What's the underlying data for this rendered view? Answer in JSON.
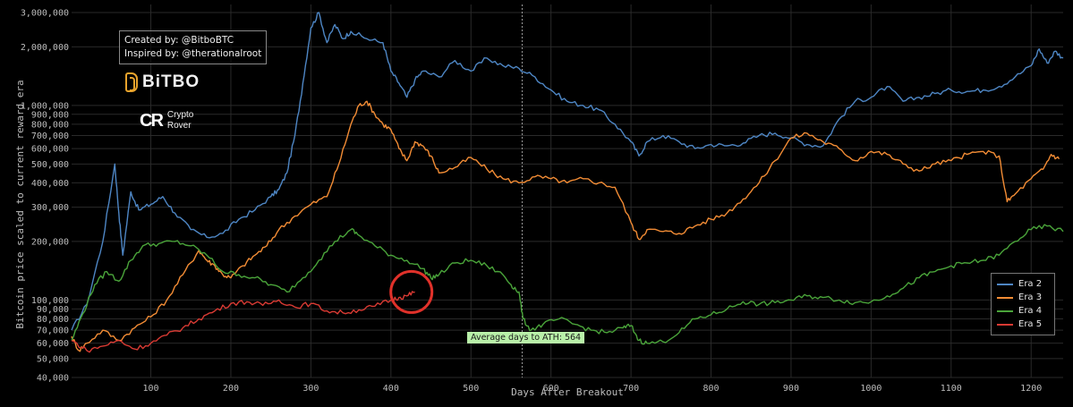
{
  "credits": {
    "created_by": "Created by: @BitboBTC",
    "inspired_by": "Inspired by: @therationalroot"
  },
  "logos": {
    "bitbo": "BiTBO",
    "crypto_rover_mark": "CR",
    "crypto_rover_line1": "Crypto",
    "crypto_rover_line2": "Rover"
  },
  "colors": {
    "background": "#000000",
    "grid": "#2a2a2a",
    "era2": "#4e86c4",
    "era3": "#f28c35",
    "era4": "#4aa43a",
    "era5": "#d83a33",
    "highlight_circle": "#e0312a",
    "ath_label_bg": "#b9f0a9"
  },
  "chart_data": {
    "type": "line",
    "xlabel": "Days After Breakout",
    "ylabel": "Bitcoin price scaled to current reward era",
    "yscale": "log",
    "xlim": [
      1,
      1240
    ],
    "ylim": [
      40000,
      3300000
    ],
    "x_ticks": [
      100,
      200,
      300,
      400,
      500,
      600,
      700,
      800,
      900,
      1000,
      1100,
      1200
    ],
    "y_ticks": [
      {
        "value": 40000,
        "label": "40,000"
      },
      {
        "value": 50000,
        "label": "50,000"
      },
      {
        "value": 60000,
        "label": "60,000"
      },
      {
        "value": 70000,
        "label": "70,000"
      },
      {
        "value": 80000,
        "label": "80,000"
      },
      {
        "value": 90000,
        "label": "90,000"
      },
      {
        "value": 100000,
        "label": "100,000"
      },
      {
        "value": 200000,
        "label": "200,000"
      },
      {
        "value": 300000,
        "label": "300,000"
      },
      {
        "value": 400000,
        "label": "400,000"
      },
      {
        "value": 500000,
        "label": "500,000"
      },
      {
        "value": 600000,
        "label": "600,000"
      },
      {
        "value": 700000,
        "label": "700,000"
      },
      {
        "value": 800000,
        "label": "800,000"
      },
      {
        "value": 900000,
        "label": "900,000"
      },
      {
        "value": 1000000,
        "label": "1,000,000"
      },
      {
        "value": 2000000,
        "label": "2,000,000"
      },
      {
        "value": 3000000,
        "label": "3,000,000"
      }
    ],
    "grid": true,
    "legend_position": "bottom-right",
    "annotation": {
      "x": 564,
      "label": "Average days to ATH: 564"
    },
    "highlight": {
      "x": 420,
      "y": 110000
    },
    "series": [
      {
        "name": "Era 2",
        "color": "#4e86c4",
        "points": [
          [
            1,
            70000
          ],
          [
            20,
            95000
          ],
          [
            40,
            200000
          ],
          [
            55,
            500000
          ],
          [
            60,
            280000
          ],
          [
            65,
            170000
          ],
          [
            75,
            360000
          ],
          [
            85,
            290000
          ],
          [
            100,
            310000
          ],
          [
            115,
            340000
          ],
          [
            130,
            280000
          ],
          [
            150,
            230000
          ],
          [
            170,
            210000
          ],
          [
            190,
            220000
          ],
          [
            210,
            260000
          ],
          [
            230,
            290000
          ],
          [
            250,
            340000
          ],
          [
            260,
            370000
          ],
          [
            270,
            450000
          ],
          [
            280,
            700000
          ],
          [
            290,
            1300000
          ],
          [
            300,
            2500000
          ],
          [
            310,
            3000000
          ],
          [
            320,
            2100000
          ],
          [
            330,
            2600000
          ],
          [
            340,
            2200000
          ],
          [
            350,
            2400000
          ],
          [
            370,
            2200000
          ],
          [
            390,
            2100000
          ],
          [
            400,
            1500000
          ],
          [
            410,
            1300000
          ],
          [
            420,
            1100000
          ],
          [
            430,
            1350000
          ],
          [
            440,
            1500000
          ],
          [
            460,
            1400000
          ],
          [
            480,
            1700000
          ],
          [
            500,
            1500000
          ],
          [
            520,
            1750000
          ],
          [
            540,
            1600000
          ],
          [
            560,
            1550000
          ],
          [
            580,
            1400000
          ],
          [
            600,
            1200000
          ],
          [
            620,
            1050000
          ],
          [
            640,
            1000000
          ],
          [
            660,
            950000
          ],
          [
            680,
            800000
          ],
          [
            700,
            650000
          ],
          [
            710,
            550000
          ],
          [
            720,
            650000
          ],
          [
            740,
            700000
          ],
          [
            760,
            650000
          ],
          [
            780,
            600000
          ],
          [
            800,
            630000
          ],
          [
            820,
            620000
          ],
          [
            840,
            640000
          ],
          [
            860,
            700000
          ],
          [
            880,
            720000
          ],
          [
            900,
            680000
          ],
          [
            920,
            630000
          ],
          [
            940,
            620000
          ],
          [
            960,
            850000
          ],
          [
            980,
            1050000
          ],
          [
            1000,
            1100000
          ],
          [
            1020,
            1250000
          ],
          [
            1040,
            1050000
          ],
          [
            1060,
            1100000
          ],
          [
            1080,
            1150000
          ],
          [
            1100,
            1200000
          ],
          [
            1120,
            1180000
          ],
          [
            1140,
            1200000
          ],
          [
            1160,
            1250000
          ],
          [
            1180,
            1400000
          ],
          [
            1200,
            1600000
          ],
          [
            1210,
            1950000
          ],
          [
            1220,
            1650000
          ],
          [
            1230,
            1900000
          ],
          [
            1240,
            1750000
          ]
        ]
      },
      {
        "name": "Era 3",
        "color": "#f28c35",
        "points": [
          [
            1,
            65000
          ],
          [
            10,
            55000
          ],
          [
            20,
            60000
          ],
          [
            40,
            70000
          ],
          [
            60,
            62000
          ],
          [
            80,
            72000
          ],
          [
            100,
            82000
          ],
          [
            120,
            100000
          ],
          [
            140,
            135000
          ],
          [
            160,
            180000
          ],
          [
            170,
            160000
          ],
          [
            180,
            150000
          ],
          [
            190,
            135000
          ],
          [
            200,
            130000
          ],
          [
            215,
            150000
          ],
          [
            230,
            170000
          ],
          [
            245,
            190000
          ],
          [
            260,
            230000
          ],
          [
            280,
            270000
          ],
          [
            300,
            310000
          ],
          [
            320,
            340000
          ],
          [
            335,
            500000
          ],
          [
            350,
            800000
          ],
          [
            360,
            1000000
          ],
          [
            370,
            1050000
          ],
          [
            380,
            900000
          ],
          [
            390,
            800000
          ],
          [
            400,
            750000
          ],
          [
            410,
            600000
          ],
          [
            420,
            520000
          ],
          [
            430,
            650000
          ],
          [
            440,
            620000
          ],
          [
            450,
            550000
          ],
          [
            460,
            450000
          ],
          [
            480,
            480000
          ],
          [
            500,
            540000
          ],
          [
            520,
            470000
          ],
          [
            540,
            420000
          ],
          [
            560,
            400000
          ],
          [
            580,
            430000
          ],
          [
            600,
            420000
          ],
          [
            620,
            400000
          ],
          [
            640,
            420000
          ],
          [
            660,
            400000
          ],
          [
            680,
            380000
          ],
          [
            700,
            250000
          ],
          [
            710,
            205000
          ],
          [
            720,
            230000
          ],
          [
            740,
            225000
          ],
          [
            760,
            220000
          ],
          [
            780,
            240000
          ],
          [
            800,
            260000
          ],
          [
            820,
            280000
          ],
          [
            840,
            330000
          ],
          [
            860,
            400000
          ],
          [
            880,
            520000
          ],
          [
            900,
            680000
          ],
          [
            920,
            720000
          ],
          [
            940,
            650000
          ],
          [
            960,
            600000
          ],
          [
            980,
            520000
          ],
          [
            1000,
            580000
          ],
          [
            1020,
            560000
          ],
          [
            1040,
            500000
          ],
          [
            1060,
            460000
          ],
          [
            1080,
            500000
          ],
          [
            1100,
            520000
          ],
          [
            1120,
            560000
          ],
          [
            1140,
            580000
          ],
          [
            1160,
            550000
          ],
          [
            1170,
            320000
          ],
          [
            1180,
            350000
          ],
          [
            1200,
            420000
          ],
          [
            1215,
            470000
          ],
          [
            1225,
            560000
          ],
          [
            1235,
            530000
          ]
        ]
      },
      {
        "name": "Era 4",
        "color": "#4aa43a",
        "points": [
          [
            1,
            62000
          ],
          [
            15,
            85000
          ],
          [
            30,
            120000
          ],
          [
            45,
            140000
          ],
          [
            60,
            125000
          ],
          [
            75,
            160000
          ],
          [
            90,
            190000
          ],
          [
            110,
            195000
          ],
          [
            130,
            200000
          ],
          [
            150,
            190000
          ],
          [
            170,
            170000
          ],
          [
            190,
            140000
          ],
          [
            210,
            135000
          ],
          [
            230,
            130000
          ],
          [
            250,
            120000
          ],
          [
            270,
            110000
          ],
          [
            290,
            130000
          ],
          [
            310,
            160000
          ],
          [
            330,
            200000
          ],
          [
            350,
            230000
          ],
          [
            360,
            215000
          ],
          [
            380,
            190000
          ],
          [
            400,
            170000
          ],
          [
            420,
            160000
          ],
          [
            440,
            145000
          ],
          [
            450,
            130000
          ],
          [
            460,
            135000
          ],
          [
            480,
            155000
          ],
          [
            500,
            160000
          ],
          [
            520,
            150000
          ],
          [
            540,
            135000
          ],
          [
            550,
            120000
          ],
          [
            560,
            110000
          ],
          [
            565,
            80000
          ],
          [
            575,
            70000
          ],
          [
            590,
            75000
          ],
          [
            610,
            80000
          ],
          [
            630,
            75000
          ],
          [
            650,
            70000
          ],
          [
            670,
            68000
          ],
          [
            690,
            72000
          ],
          [
            700,
            74000
          ],
          [
            710,
            62000
          ],
          [
            720,
            60000
          ],
          [
            740,
            61000
          ],
          [
            760,
            68000
          ],
          [
            780,
            80000
          ],
          [
            800,
            84000
          ],
          [
            820,
            90000
          ],
          [
            840,
            98000
          ],
          [
            860,
            95000
          ],
          [
            880,
            97000
          ],
          [
            900,
            100000
          ],
          [
            920,
            105000
          ],
          [
            940,
            103000
          ],
          [
            960,
            100000
          ],
          [
            980,
            97000
          ],
          [
            1000,
            98000
          ],
          [
            1020,
            105000
          ],
          [
            1040,
            115000
          ],
          [
            1060,
            130000
          ],
          [
            1080,
            140000
          ],
          [
            1100,
            150000
          ],
          [
            1120,
            155000
          ],
          [
            1140,
            160000
          ],
          [
            1160,
            170000
          ],
          [
            1180,
            200000
          ],
          [
            1200,
            230000
          ],
          [
            1220,
            240000
          ],
          [
            1240,
            225000
          ]
        ]
      },
      {
        "name": "Era 5",
        "color": "#d83a33",
        "points": [
          [
            1,
            62000
          ],
          [
            20,
            55000
          ],
          [
            40,
            58000
          ],
          [
            60,
            62000
          ],
          [
            80,
            56000
          ],
          [
            100,
            60000
          ],
          [
            120,
            66000
          ],
          [
            140,
            72000
          ],
          [
            160,
            80000
          ],
          [
            180,
            88000
          ],
          [
            200,
            96000
          ],
          [
            220,
            98000
          ],
          [
            240,
            94000
          ],
          [
            260,
            100000
          ],
          [
            280,
            92000
          ],
          [
            300,
            96000
          ],
          [
            320,
            88000
          ],
          [
            340,
            86000
          ],
          [
            360,
            89000
          ],
          [
            380,
            93000
          ],
          [
            400,
            100000
          ],
          [
            410,
            103000
          ],
          [
            420,
            105000
          ],
          [
            430,
            110000
          ]
        ]
      }
    ]
  }
}
